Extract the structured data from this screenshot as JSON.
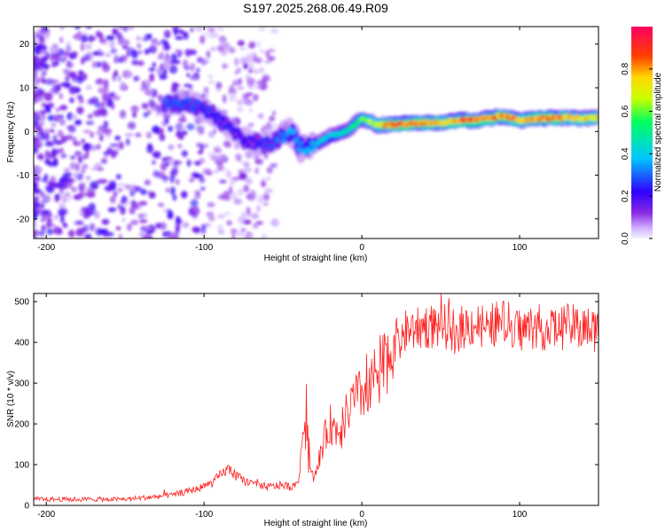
{
  "chart_data": [
    {
      "type": "heatmap",
      "title": "S197.2025.268.06.49.R09",
      "xlabel": "Height of straight line (km)",
      "ylabel": "Frequency (Hz)",
      "xlim": [
        -208,
        150
      ],
      "ylim": [
        -24.5,
        24
      ],
      "xticks": [
        -200,
        -100,
        0,
        100
      ],
      "xtick_labels": [
        "-200",
        "-100",
        "0",
        "100"
      ],
      "yticks": [
        -20,
        -10,
        0,
        10,
        20
      ],
      "ytick_labels": [
        "-20",
        "-10",
        "0",
        "10",
        "20"
      ],
      "colorbar": {
        "label": "Normalized spectral amplitude",
        "range": [
          0,
          1
        ],
        "ticks": [
          0,
          0.2,
          0.4,
          0.6,
          0.8
        ],
        "tick_labels": [
          "0.0",
          "0.2",
          "0.4",
          "0.6",
          "0.8"
        ],
        "colors": [
          "#f4f4ff",
          "#d0b0ff",
          "#8a2be2",
          "#3000ff",
          "#00c8ff",
          "#00ff60",
          "#c8ff00",
          "#ffd800",
          "#ff4000",
          "#ff0060"
        ]
      },
      "ridge": {
        "x": [
          -125,
          -115,
          -105,
          -95,
          -85,
          -75,
          -65,
          -55,
          -45,
          -38,
          -30,
          -20,
          -10,
          0,
          10,
          20,
          30,
          40,
          50,
          60,
          70,
          80,
          90,
          100,
          110,
          120,
          130,
          140,
          150
        ],
        "y": [
          6,
          7,
          6,
          4,
          1,
          -2,
          -3,
          -2,
          0,
          -4,
          -3,
          -1,
          0,
          3,
          1.5,
          1.5,
          1.8,
          2,
          2,
          2.5,
          2.5,
          3,
          3.5,
          2.5,
          3,
          3,
          3.2,
          3,
          3
        ],
        "amplitude": [
          0.3,
          0.32,
          0.28,
          0.27,
          0.25,
          0.22,
          0.24,
          0.3,
          0.38,
          0.4,
          0.42,
          0.45,
          0.5,
          0.6,
          0.75,
          0.9,
          0.9,
          0.85,
          0.8,
          0.85,
          0.9,
          0.85,
          0.88,
          0.82,
          0.85,
          0.9,
          0.8,
          0.78,
          0.75
        ]
      },
      "noise_region": {
        "x_range": [
          -208,
          -100
        ],
        "amplitude_range": [
          0.05,
          0.2
        ]
      }
    },
    {
      "type": "line",
      "title": "",
      "xlabel": "Height of straight line (km)",
      "ylabel": "SNR (10 * v/v)",
      "xlim": [
        -208,
        150
      ],
      "ylim": [
        0,
        520
      ],
      "xticks": [
        -200,
        -100,
        0,
        100
      ],
      "xtick_labels": [
        "-200",
        "-100",
        "0",
        "100"
      ],
      "yticks": [
        0,
        100,
        200,
        300,
        400,
        500
      ],
      "ytick_labels": [
        "0",
        "100",
        "200",
        "300",
        "400",
        "500"
      ],
      "line_color": "#ff2020",
      "series": [
        {
          "name": "SNR",
          "x": [
            -208,
            -180,
            -150,
            -120,
            -105,
            -95,
            -85,
            -75,
            -60,
            -50,
            -45,
            -40,
            -37,
            -35,
            -33,
            -30,
            -25,
            -20,
            -15,
            -10,
            -5,
            0,
            5,
            10,
            15,
            20,
            25,
            30,
            40,
            50,
            60,
            70,
            80,
            90,
            100,
            110,
            120,
            130,
            140,
            150
          ],
          "y": [
            15,
            15,
            15,
            25,
            40,
            55,
            90,
            60,
            45,
            50,
            45,
            60,
            200,
            230,
            100,
            60,
            150,
            200,
            180,
            220,
            260,
            270,
            300,
            330,
            350,
            400,
            420,
            430,
            440,
            440,
            430,
            445,
            440,
            450,
            430,
            440,
            430,
            440,
            435,
            430
          ]
        }
      ]
    }
  ]
}
